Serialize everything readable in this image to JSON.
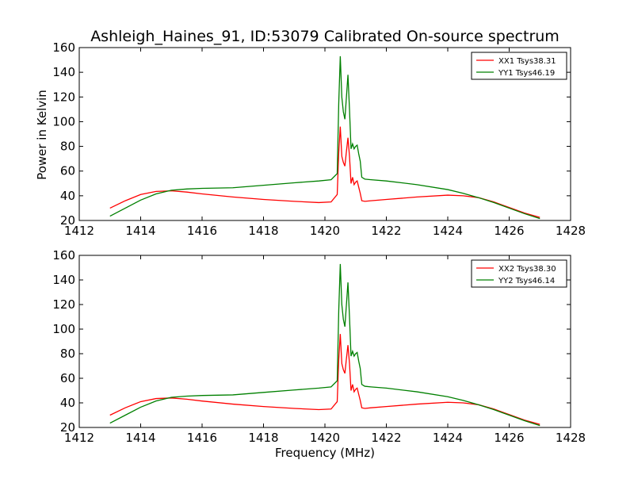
{
  "figure": {
    "title": "Ashleigh_Haines_91, ID:53079 Calibrated On-source spectrum",
    "xlabel": "Frequency (MHz)",
    "ylabel": "Power in Kelvin"
  },
  "chart_data": [
    {
      "type": "line",
      "xlim": [
        1412,
        1428
      ],
      "ylim": [
        20,
        160
      ],
      "x_ticks": [
        "1412",
        "1414",
        "1416",
        "1418",
        "1420",
        "1422",
        "1424",
        "1426",
        "1428"
      ],
      "y_ticks": [
        "20",
        "40",
        "60",
        "80",
        "100",
        "120",
        "140",
        "160"
      ],
      "ylabel": "Power in Kelvin",
      "legend_position": "top-right",
      "series": [
        {
          "name": "XX1 Tsys38.31",
          "color": "#ff0000",
          "x": [
            1413.0,
            1413.5,
            1414.0,
            1414.5,
            1415.0,
            1415.5,
            1416.0,
            1417.0,
            1418.0,
            1419.0,
            1419.8,
            1420.2,
            1420.4,
            1420.45,
            1420.5,
            1420.55,
            1420.6,
            1420.65,
            1420.7,
            1420.75,
            1420.8,
            1420.85,
            1420.9,
            1420.95,
            1421.0,
            1421.05,
            1421.1,
            1421.15,
            1421.2,
            1421.3,
            1421.5,
            1422.0,
            1423.0,
            1424.0,
            1424.5,
            1425.0,
            1425.5,
            1426.0,
            1426.5,
            1427.0
          ],
          "y": [
            30,
            36,
            41,
            43.5,
            44,
            43,
            41.5,
            39,
            37,
            35.5,
            34.5,
            35,
            41,
            75,
            96,
            72,
            67,
            64,
            76,
            87,
            72,
            50,
            55,
            49,
            51,
            52,
            47,
            42,
            36,
            35.5,
            36,
            37,
            39,
            40.5,
            40,
            38.5,
            35,
            30.5,
            26,
            22.5
          ]
        },
        {
          "name": "YY1 Tsys46.19",
          "color": "#008000",
          "x": [
            1413.0,
            1413.5,
            1414.0,
            1414.5,
            1415.0,
            1415.5,
            1416.0,
            1417.0,
            1418.0,
            1419.0,
            1419.8,
            1420.2,
            1420.4,
            1420.45,
            1420.5,
            1420.55,
            1420.6,
            1420.65,
            1420.7,
            1420.75,
            1420.8,
            1420.85,
            1420.9,
            1420.95,
            1421.0,
            1421.05,
            1421.1,
            1421.15,
            1421.2,
            1421.3,
            1421.5,
            1422.0,
            1423.0,
            1424.0,
            1424.5,
            1425.0,
            1425.5,
            1426.0,
            1426.5,
            1427.0
          ],
          "y": [
            23.5,
            30,
            36.5,
            41.5,
            44.5,
            45.5,
            46,
            46.5,
            48.5,
            50.5,
            52,
            53,
            58,
            115,
            153,
            120,
            108,
            102,
            120,
            138,
            110,
            78,
            82,
            78,
            80,
            81,
            74,
            68,
            55,
            53.5,
            53,
            52,
            49,
            45,
            42,
            38.5,
            34.5,
            30,
            25.5,
            21.5
          ]
        }
      ]
    },
    {
      "type": "line",
      "xlim": [
        1412,
        1428
      ],
      "ylim": [
        20,
        160
      ],
      "x_ticks": [
        "1412",
        "1414",
        "1416",
        "1418",
        "1420",
        "1422",
        "1424",
        "1426",
        "1428"
      ],
      "y_ticks": [
        "20",
        "40",
        "60",
        "80",
        "100",
        "120",
        "140",
        "160"
      ],
      "xlabel": "Frequency (MHz)",
      "legend_position": "top-right",
      "series": [
        {
          "name": "XX2 Tsys38.30",
          "color": "#ff0000",
          "x": [
            1413.0,
            1413.5,
            1414.0,
            1414.5,
            1415.0,
            1415.5,
            1416.0,
            1417.0,
            1418.0,
            1419.0,
            1419.8,
            1420.2,
            1420.4,
            1420.45,
            1420.5,
            1420.55,
            1420.6,
            1420.65,
            1420.7,
            1420.75,
            1420.8,
            1420.85,
            1420.9,
            1420.95,
            1421.0,
            1421.05,
            1421.1,
            1421.15,
            1421.2,
            1421.3,
            1421.5,
            1422.0,
            1423.0,
            1424.0,
            1424.5,
            1425.0,
            1425.5,
            1426.0,
            1426.5,
            1427.0
          ],
          "y": [
            30,
            36,
            41,
            43.5,
            44,
            43,
            41.5,
            39,
            37,
            35.5,
            34.5,
            35,
            41,
            75,
            96,
            72,
            67,
            64,
            76,
            87,
            72,
            50,
            55,
            49,
            51,
            52,
            47,
            42,
            36,
            35.5,
            36,
            37,
            39,
            40.5,
            40,
            38.5,
            35,
            30.5,
            26,
            22.5
          ]
        },
        {
          "name": "YY2 Tsys46.14",
          "color": "#008000",
          "x": [
            1413.0,
            1413.5,
            1414.0,
            1414.5,
            1415.0,
            1415.5,
            1416.0,
            1417.0,
            1418.0,
            1419.0,
            1419.8,
            1420.2,
            1420.4,
            1420.45,
            1420.5,
            1420.55,
            1420.6,
            1420.65,
            1420.7,
            1420.75,
            1420.8,
            1420.85,
            1420.9,
            1420.95,
            1421.0,
            1421.05,
            1421.1,
            1421.15,
            1421.2,
            1421.3,
            1421.5,
            1422.0,
            1423.0,
            1424.0,
            1424.5,
            1425.0,
            1425.5,
            1426.0,
            1426.5,
            1427.0
          ],
          "y": [
            23.5,
            30,
            36.5,
            41.5,
            44.5,
            45.5,
            46,
            46.5,
            48.5,
            50.5,
            52,
            53,
            58,
            115,
            153,
            120,
            108,
            102,
            120,
            138,
            110,
            78,
            82,
            78,
            80,
            81,
            74,
            68,
            55,
            53.5,
            53,
            52,
            49,
            45,
            42,
            38.5,
            34.5,
            30,
            25.5,
            21.5
          ]
        }
      ]
    }
  ]
}
